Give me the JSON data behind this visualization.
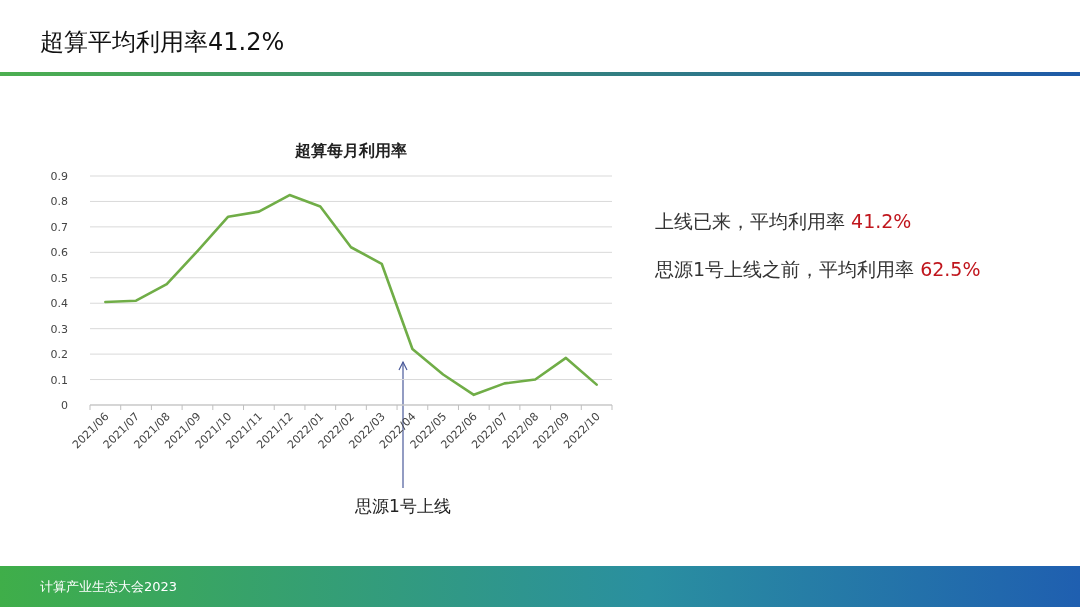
{
  "chart_data": {
    "type": "line",
    "title": "超算每月利用率",
    "categories": [
      "2021/06",
      "2021/07",
      "2021/08",
      "2021/09",
      "2021/10",
      "2021/11",
      "2021/12",
      "2022/01",
      "2022/02",
      "2022/03",
      "2022/04",
      "2022/05",
      "2022/06",
      "2022/07",
      "2022/08",
      "2022/09",
      "2022/10"
    ],
    "series": [
      {
        "color": "#70ad47",
        "values": [
          0.405,
          0.41,
          0.475,
          0.605,
          0.74,
          0.76,
          0.825,
          0.78,
          0.62,
          0.555,
          0.22,
          0.12,
          0.04,
          0.085,
          0.1,
          0.185,
          0.08
        ]
      }
    ],
    "ylim": [
      0,
      0.9
    ],
    "yticks": [
      0,
      0.1,
      0.2,
      0.3,
      0.4,
      0.5,
      0.6,
      0.7,
      0.8,
      0.9
    ],
    "grid": "y",
    "marker": "none",
    "line_style": "solid",
    "annotations": [
      "超算平均利用率41.2%",
      "上线已来，平均利用率 41.2%",
      "思源1号上线之前，平均利用率 62.5%",
      "思源1号上线",
      "计算产业生态大会2023"
    ]
  }
}
